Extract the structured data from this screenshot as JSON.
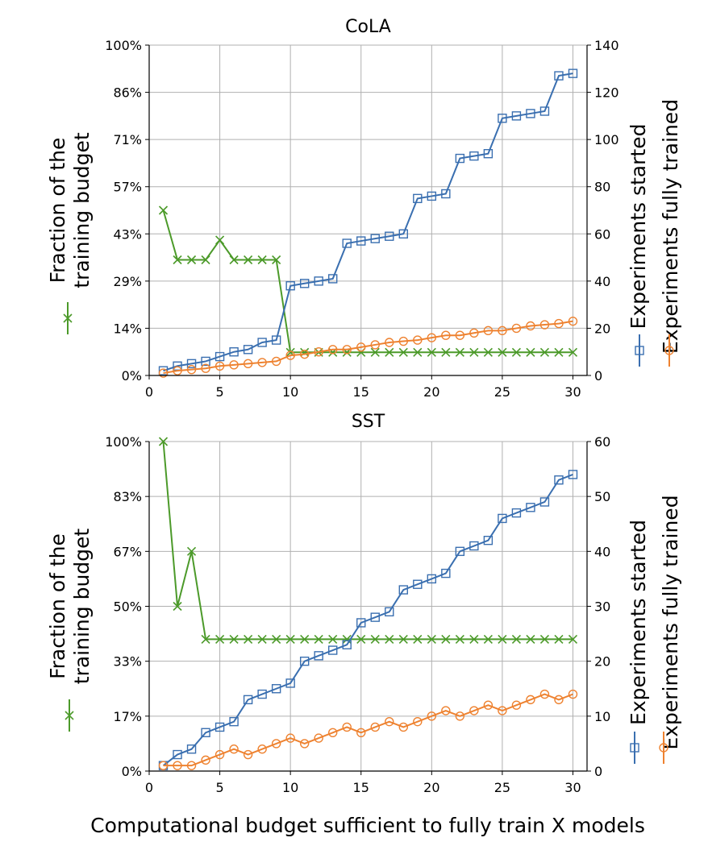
{
  "figure": {
    "xlabel": "Computational budget sufficient to fully train X models",
    "colors": {
      "green": "#4c9a2a",
      "blue": "#3a6fb0",
      "orange": "#ee8230"
    }
  },
  "chart_data": [
    {
      "type": "line",
      "title": "CoLA",
      "x": [
        1,
        2,
        3,
        4,
        5,
        6,
        7,
        8,
        9,
        10,
        11,
        12,
        13,
        14,
        15,
        16,
        17,
        18,
        19,
        20,
        21,
        22,
        23,
        24,
        25,
        26,
        27,
        28,
        29,
        30
      ],
      "xlim": [
        0,
        31
      ],
      "xticks": [
        0,
        5,
        10,
        15,
        20,
        25,
        30
      ],
      "left_axis": {
        "label_line1": "Fraction of the",
        "label_line2": "training budget",
        "ylim": [
          0,
          100
        ],
        "ticks": [
          0,
          14.29,
          28.57,
          42.86,
          57.14,
          71.43,
          85.71,
          100
        ],
        "tick_labels": [
          "0%",
          "14%",
          "29%",
          "43%",
          "57%",
          "71%",
          "86%",
          "100%"
        ]
      },
      "right_axis": {
        "label_line1": "Experiments fully trained",
        "label_line2": "Experiments started",
        "ylim": [
          0,
          140
        ],
        "ticks": [
          0,
          20,
          40,
          60,
          80,
          100,
          120,
          140
        ],
        "tick_labels": [
          "0",
          "20",
          "40",
          "60",
          "80",
          "100",
          "120",
          "140"
        ]
      },
      "series": [
        {
          "name": "Fraction of the training budget",
          "axis": "left",
          "marker": "x",
          "color": "#4c9a2a",
          "values": [
            50,
            35,
            35,
            35,
            41,
            35,
            35,
            35,
            35,
            7,
            7,
            7,
            7,
            7,
            7,
            7,
            7,
            7,
            7,
            7,
            7,
            7,
            7,
            7,
            7,
            7,
            7,
            7,
            7,
            7
          ]
        },
        {
          "name": "Experiments started",
          "axis": "right",
          "marker": "square",
          "color": "#3a6fb0",
          "values": [
            2,
            4,
            5,
            6,
            8,
            10,
            11,
            14,
            15,
            38,
            39,
            40,
            41,
            56,
            57,
            58,
            59,
            60,
            75,
            76,
            77,
            92,
            93,
            94,
            109,
            110,
            111,
            112,
            127,
            128
          ]
        },
        {
          "name": "Experiments fully trained",
          "axis": "right",
          "marker": "circle",
          "color": "#ee8230",
          "values": [
            1,
            2,
            2.5,
            3,
            4,
            4.5,
            5,
            5.5,
            6,
            8.5,
            9,
            10,
            11,
            11,
            12,
            13,
            14,
            14.5,
            15,
            16,
            17,
            17,
            18,
            19,
            19,
            20,
            21,
            21.5,
            22,
            23
          ]
        }
      ]
    },
    {
      "type": "line",
      "title": "SST",
      "x": [
        1,
        2,
        3,
        4,
        5,
        6,
        7,
        8,
        9,
        10,
        11,
        12,
        13,
        14,
        15,
        16,
        17,
        18,
        19,
        20,
        21,
        22,
        23,
        24,
        25,
        26,
        27,
        28,
        29,
        30
      ],
      "xlim": [
        0,
        31
      ],
      "xticks": [
        0,
        5,
        10,
        15,
        20,
        25,
        30
      ],
      "left_axis": {
        "label_line1": "Fraction of the",
        "label_line2": "training budget",
        "ylim": [
          0,
          100
        ],
        "ticks": [
          0,
          16.67,
          33.33,
          50,
          66.67,
          83.33,
          100
        ],
        "tick_labels": [
          "0%",
          "17%",
          "33%",
          "50%",
          "67%",
          "83%",
          "100%"
        ]
      },
      "right_axis": {
        "label_line1": "Experiments fully trained",
        "label_line2": "Experiments started",
        "ylim": [
          0,
          60
        ],
        "ticks": [
          0,
          10,
          20,
          30,
          40,
          50,
          60
        ],
        "tick_labels": [
          "0",
          "10",
          "20",
          "30",
          "40",
          "50",
          "60"
        ]
      },
      "series": [
        {
          "name": "Fraction of the training budget",
          "axis": "left",
          "marker": "x",
          "color": "#4c9a2a",
          "values": [
            100,
            50,
            66.67,
            40,
            40,
            40,
            40,
            40,
            40,
            40,
            40,
            40,
            40,
            40,
            40,
            40,
            40,
            40,
            40,
            40,
            40,
            40,
            40,
            40,
            40,
            40,
            40,
            40,
            40,
            40
          ]
        },
        {
          "name": "Experiments started",
          "axis": "right",
          "marker": "square",
          "color": "#3a6fb0",
          "values": [
            1,
            3,
            4,
            7,
            8,
            9,
            13,
            14,
            15,
            16,
            20,
            21,
            22,
            23,
            27,
            28,
            29,
            33,
            34,
            35,
            36,
            40,
            41,
            42,
            46,
            47,
            48,
            49,
            53,
            54
          ]
        },
        {
          "name": "Experiments fully trained",
          "axis": "right",
          "marker": "circle",
          "color": "#ee8230",
          "values": [
            1,
            1,
            1,
            2,
            3,
            4,
            3,
            4,
            5,
            6,
            5,
            6,
            7,
            8,
            7,
            8,
            9,
            8,
            9,
            10,
            11,
            10,
            11,
            12,
            11,
            12,
            13,
            14,
            13,
            14
          ]
        }
      ]
    }
  ]
}
